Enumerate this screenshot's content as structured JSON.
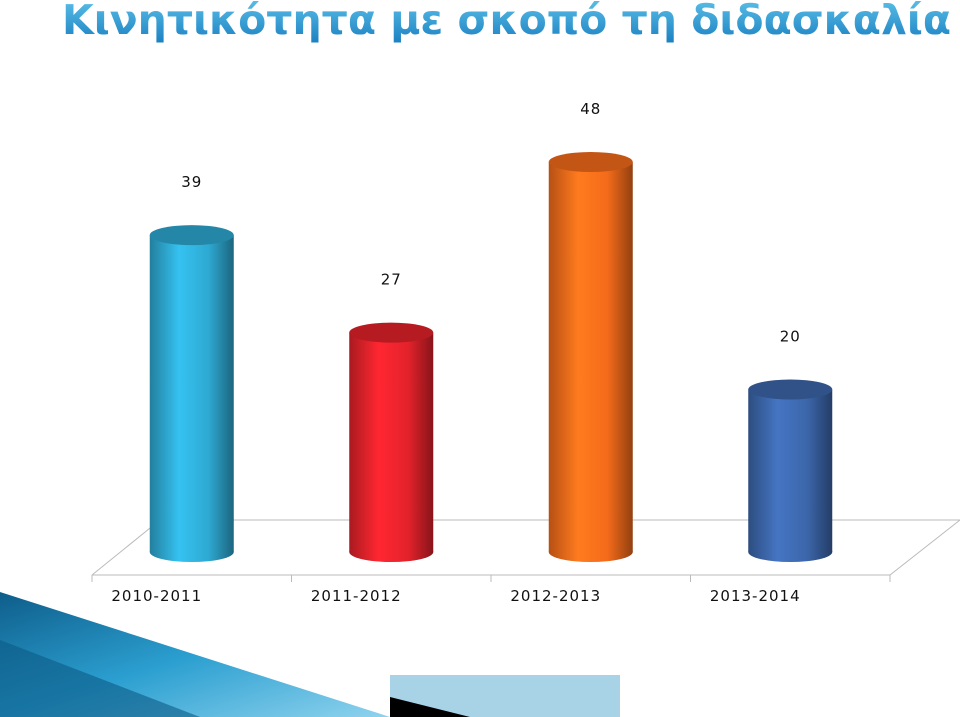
{
  "chart_data": {
    "type": "bar",
    "title": "Κινητικότητα με σκοπό τη διδασκαλία (ΕΠ):",
    "categories": [
      "2010-2011",
      "2011-2012",
      "2012-2013",
      "2013-2014"
    ],
    "values": [
      39,
      27,
      48,
      20
    ],
    "colors": [
      "#2ea9d2",
      "#e3222b",
      "#f46b1a",
      "#3c66aa"
    ],
    "grid": false
  }
}
